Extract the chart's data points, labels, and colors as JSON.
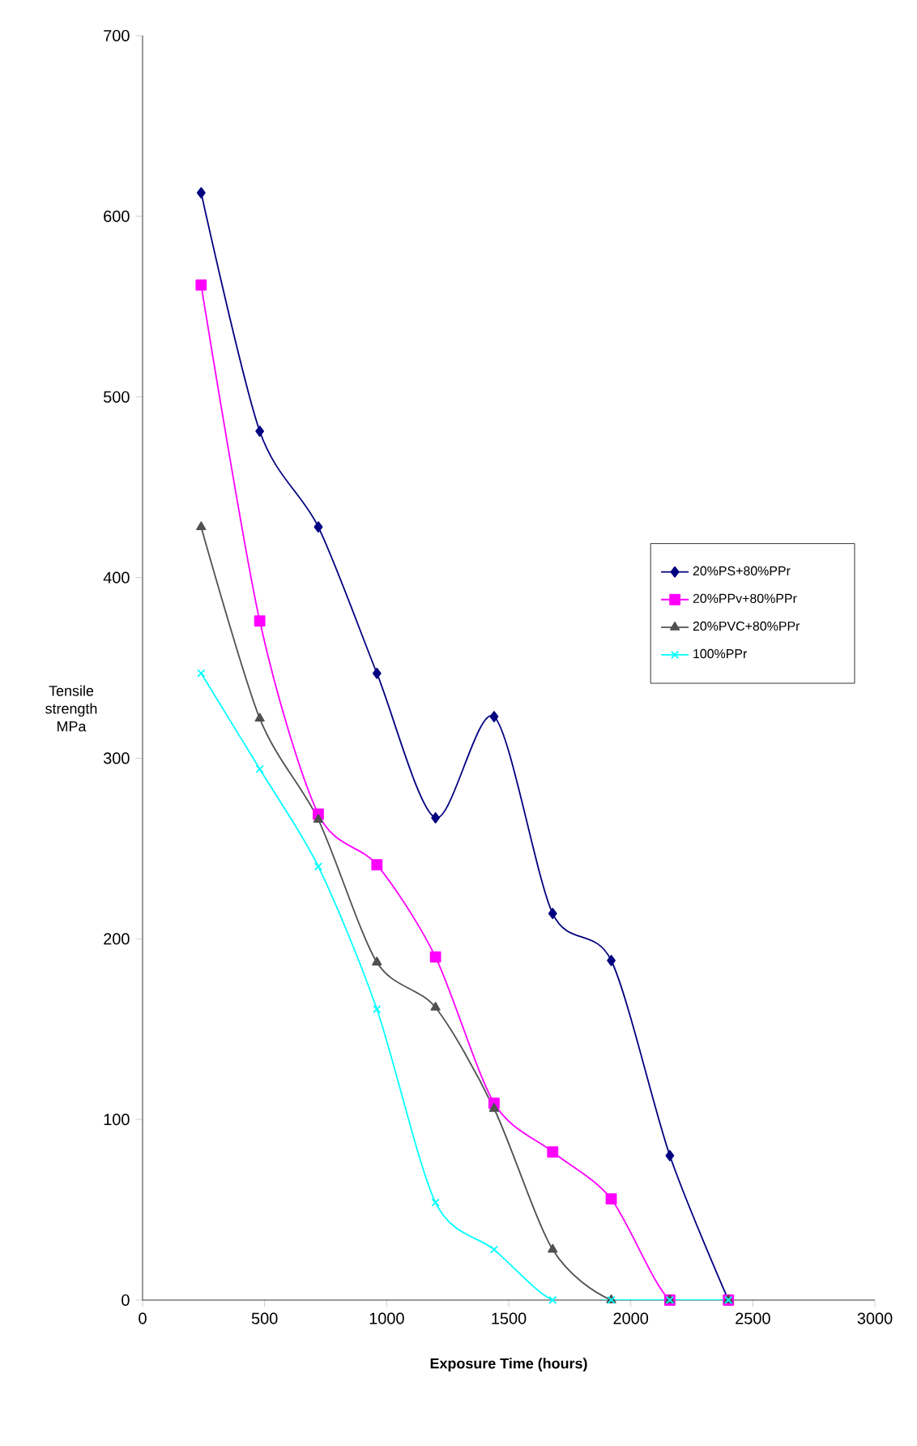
{
  "chart_data": {
    "type": "line",
    "xlabel": "Exposure Time (hours)",
    "ylabel": "Tensile strength MPa",
    "x": [
      240,
      480,
      720,
      960,
      1200,
      1440,
      1680,
      1920,
      2160,
      2400
    ],
    "series": [
      {
        "name": "20%PS+80%PPr",
        "color": "#000080",
        "marker": "diamond",
        "values": [
          613,
          481,
          428,
          347,
          267,
          323,
          214,
          188,
          80,
          0
        ]
      },
      {
        "name": "20%PPv+80%PPr",
        "color": "#ff00ff",
        "marker": "square",
        "values": [
          562,
          376,
          269,
          241,
          190,
          109,
          82,
          56,
          0,
          0
        ]
      },
      {
        "name": "20%PVC+80%PPr",
        "color": "#505050",
        "marker": "triangle",
        "values": [
          428,
          322,
          266,
          187,
          162,
          106,
          28,
          0,
          0,
          0
        ]
      },
      {
        "name": "100%PPr",
        "color": "#00ffff",
        "marker": "cross",
        "values": [
          347,
          294,
          240,
          161,
          54,
          28,
          0,
          0,
          0,
          0
        ]
      }
    ],
    "xlim": [
      0,
      3000
    ],
    "xticks": [
      0,
      500,
      1000,
      1500,
      2000,
      2500,
      3000
    ],
    "ylim": [
      0,
      700
    ],
    "yticks": [
      0,
      100,
      200,
      300,
      400,
      500,
      600,
      700
    ],
    "grid": false,
    "legend": "right",
    "line_style": "solid"
  }
}
